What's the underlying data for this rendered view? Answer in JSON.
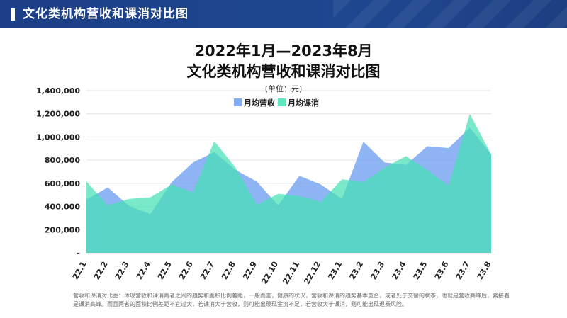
{
  "header": {
    "title": "文化类机构营收和课消对比图"
  },
  "chart_data": {
    "type": "area",
    "title_line1": "2022年1月—2023年8月",
    "title_line2": "文化类机构营收和课消对比图",
    "subtitle": "(单位：元)",
    "categories": [
      "22.1",
      "22.2",
      "22.3",
      "22.4",
      "22.5",
      "22.6",
      "22.7",
      "22.8",
      "22.9",
      "22.10",
      "22.11",
      "22.12",
      "23.1",
      "23.2",
      "23.3",
      "23.4",
      "23.5",
      "23.6",
      "23.7",
      "23.8"
    ],
    "series": [
      {
        "name": "月均营收",
        "color": "#6f9ff0",
        "values": [
          460000,
          565000,
          405000,
          335000,
          610000,
          780000,
          870000,
          715000,
          615000,
          410000,
          665000,
          590000,
          465000,
          960000,
          780000,
          760000,
          920000,
          905000,
          1080000,
          850000
        ]
      },
      {
        "name": "月均课消",
        "color": "#45e0b4",
        "values": [
          615000,
          410000,
          465000,
          480000,
          590000,
          520000,
          965000,
          735000,
          415000,
          510000,
          490000,
          440000,
          635000,
          610000,
          735000,
          835000,
          715000,
          580000,
          1200000,
          850000
        ]
      }
    ],
    "ylim": [
      0,
      1400000
    ],
    "yticks": [
      0,
      200000,
      400000,
      600000,
      800000,
      1000000,
      1200000,
      1400000
    ],
    "ytick_labels": [
      "-",
      "200,000",
      "400,000",
      "600,000",
      "800,000",
      "1,000,000",
      "1,200,000",
      "1,400,000"
    ],
    "grid": true,
    "legend_position": "top-center"
  },
  "footnote": "营收和课消对比图：体现营收和课消两者之间的趋势和面积比例差距，一般而言，健康的状况，营收和课消的趋势基本重合，或者处于交替的状态，也就是营收高峰后，紧接着是课消高峰。而且两者的面积比例差距不宜过大，若课消大于营收，则可能出现现金流不足，若营收大于课消，则可能出现退费风险。"
}
